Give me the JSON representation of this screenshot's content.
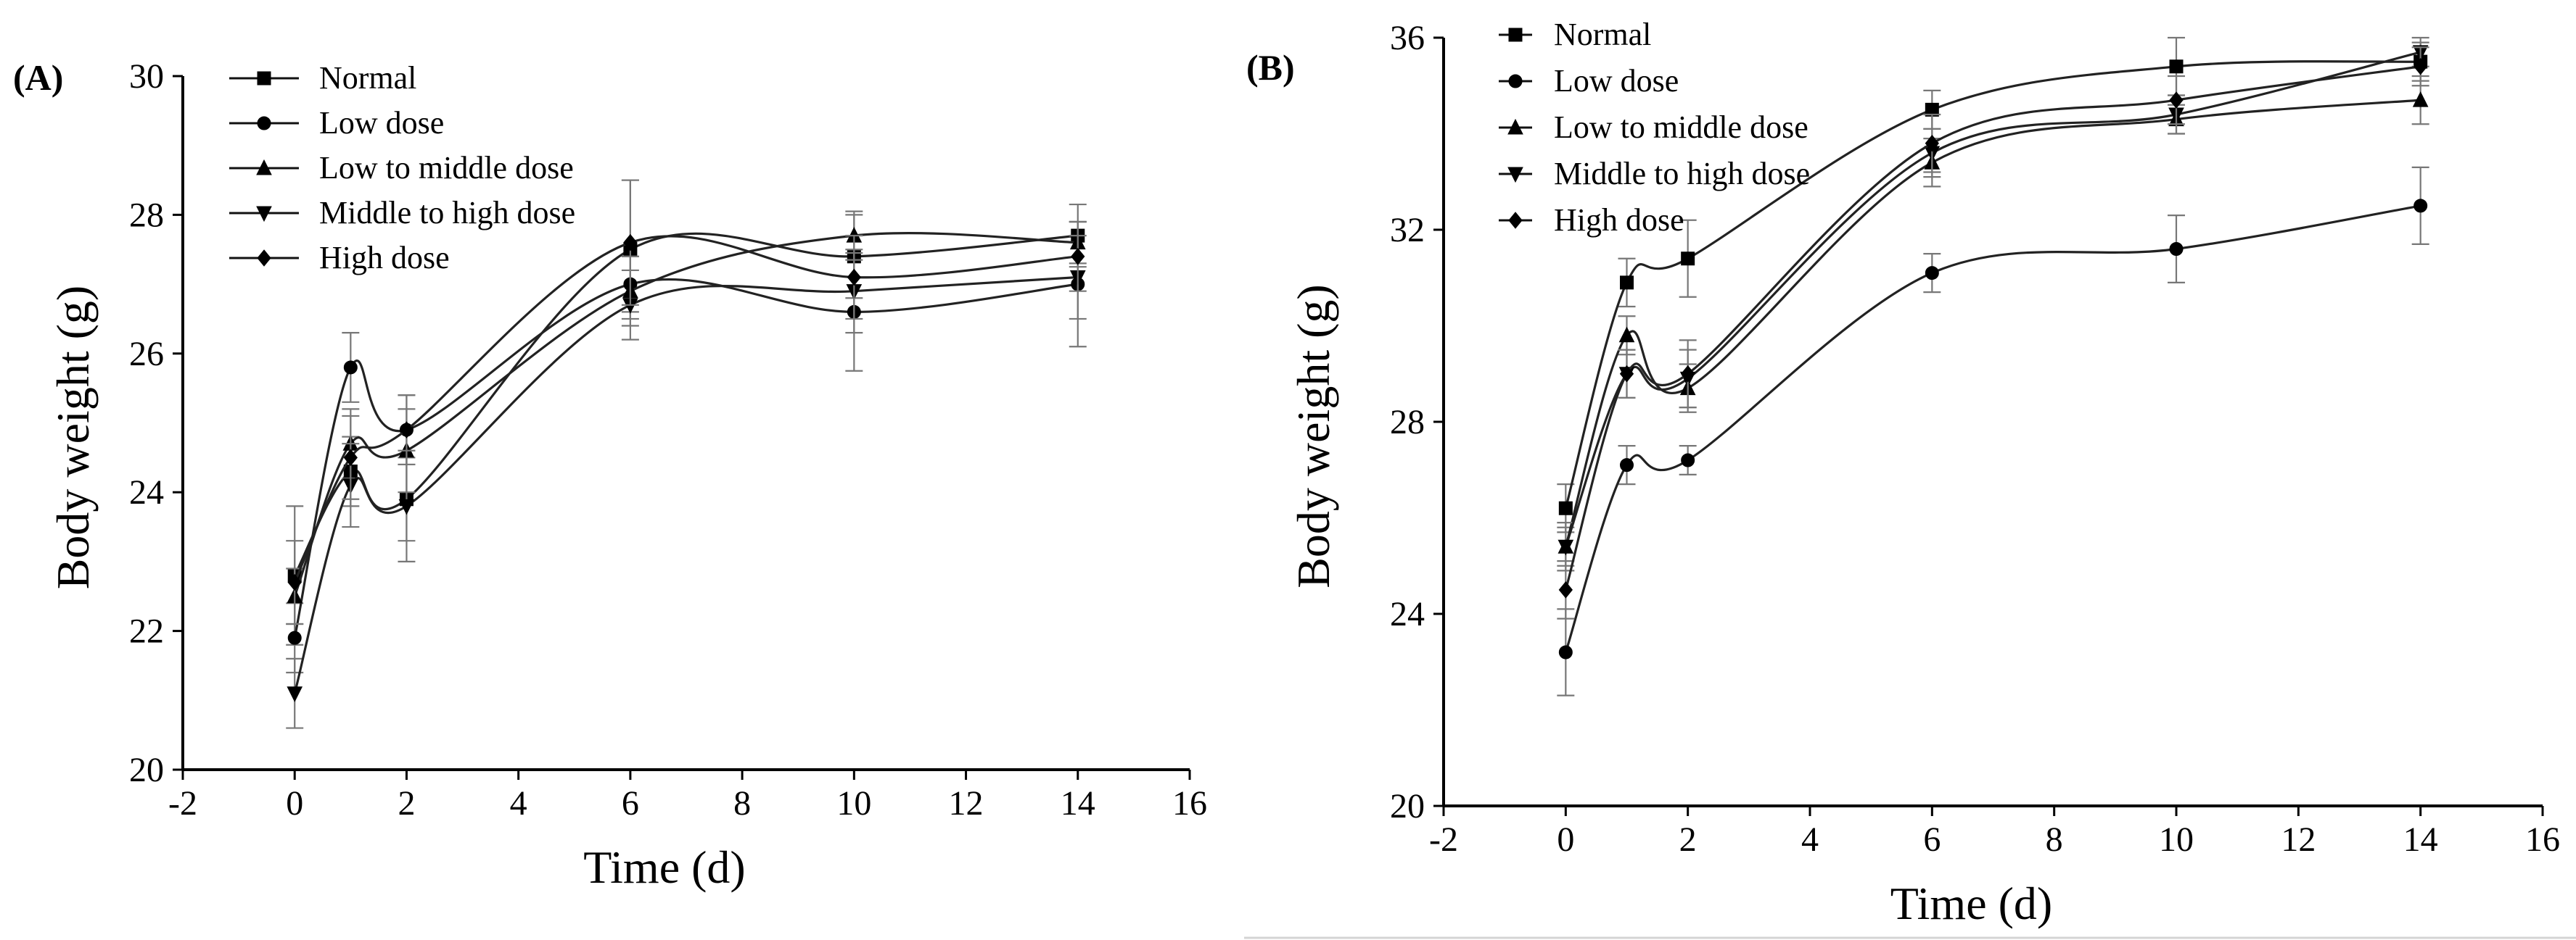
{
  "chart_data": [
    {
      "panel_label": "(A)",
      "type": "line",
      "xlabel": "Time (d)",
      "ylabel": "Body weight (g)",
      "xlim": [
        -2,
        16
      ],
      "ylim": [
        20,
        30
      ],
      "xticks": [
        -2,
        0,
        2,
        4,
        6,
        8,
        10,
        12,
        14,
        16
      ],
      "yticks": [
        20,
        22,
        24,
        26,
        28,
        30
      ],
      "x": [
        0,
        1,
        2,
        6,
        10,
        14
      ],
      "legend_position": "top-left",
      "series": [
        {
          "name": "Normal",
          "marker": "square",
          "values": [
            22.8,
            24.3,
            23.9,
            27.5,
            27.4,
            27.7
          ],
          "errors": [
            1.0,
            0.5,
            0.6,
            1.0,
            0.6,
            0.45
          ]
        },
        {
          "name": "Low dose",
          "marker": "circle",
          "values": [
            21.9,
            25.8,
            24.9,
            27.0,
            26.6,
            27.0
          ],
          "errors": [
            0.5,
            0.5,
            0.5,
            0.4,
            0.85,
            0.9
          ]
        },
        {
          "name": "Low to middle dose",
          "marker": "triangle-up",
          "values": [
            22.5,
            24.7,
            24.6,
            26.9,
            27.7,
            27.6
          ],
          "errors": [
            0.4,
            0.5,
            0.6,
            0.5,
            0.35,
            0.3
          ]
        },
        {
          "name": "Middle to high dose",
          "marker": "triangle-down",
          "values": [
            21.1,
            24.1,
            23.8,
            26.7,
            26.9,
            27.1
          ],
          "errors": [
            0.5,
            0.6,
            0.8,
            0.5,
            0.6,
            0.6
          ]
        },
        {
          "name": "High dose",
          "marker": "diamond",
          "values": [
            22.7,
            24.5,
            24.9,
            27.6,
            27.1,
            27.4
          ],
          "errors": [
            0.6,
            0.6,
            0.5,
            0.9,
            0.6,
            0.5
          ]
        }
      ]
    },
    {
      "panel_label": "(B)",
      "type": "line",
      "xlabel": "Time (d)",
      "ylabel": "Body weight (g)",
      "xlim": [
        -2,
        16
      ],
      "ylim": [
        20,
        36
      ],
      "xticks": [
        -2,
        0,
        2,
        4,
        6,
        8,
        10,
        12,
        14,
        16
      ],
      "yticks": [
        20,
        24,
        28,
        32,
        36
      ],
      "x": [
        0,
        1,
        2,
        6,
        10,
        14
      ],
      "legend_position": "top-left",
      "series": [
        {
          "name": "Normal",
          "marker": "square",
          "values": [
            26.2,
            30.9,
            31.4,
            34.5,
            35.4,
            35.5
          ],
          "errors": [
            0.5,
            0.5,
            0.8,
            0.4,
            0.6,
            0.4
          ]
        },
        {
          "name": "Low dose",
          "marker": "circle",
          "values": [
            23.2,
            27.1,
            27.2,
            31.1,
            31.6,
            32.5
          ],
          "errors": [
            0.9,
            0.4,
            0.3,
            0.4,
            0.7,
            0.8
          ]
        },
        {
          "name": "Low to middle dose",
          "marker": "triangle-up",
          "values": [
            25.4,
            29.8,
            28.7,
            33.4,
            34.3,
            34.7
          ],
          "errors": [
            0.4,
            0.4,
            0.5,
            0.5,
            0.3,
            0.5
          ]
        },
        {
          "name": "Middle to high dose",
          "marker": "triangle-down",
          "values": [
            25.4,
            29.0,
            28.9,
            33.6,
            34.4,
            35.7
          ],
          "errors": [
            0.5,
            0.5,
            0.6,
            0.5,
            0.4,
            0.3
          ]
        },
        {
          "name": "High dose",
          "marker": "diamond",
          "values": [
            24.5,
            29.0,
            29.0,
            33.8,
            34.7,
            35.4
          ],
          "errors": [
            0.6,
            0.5,
            0.7,
            0.6,
            0.5,
            0.4
          ]
        }
      ]
    }
  ]
}
